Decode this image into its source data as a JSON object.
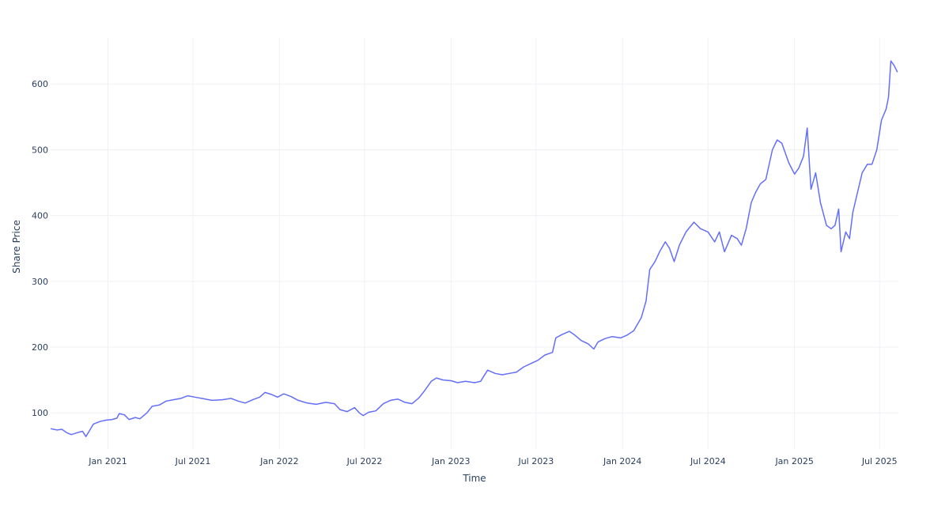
{
  "chart_data": {
    "type": "line",
    "xlabel": "Time",
    "ylabel": "Share Price",
    "x_range": [
      "2020-09-01",
      "2025-08-10"
    ],
    "ylim": [
      45,
      670
    ],
    "grid": true,
    "legend": "none",
    "color": "#636efa",
    "x_ticks": [
      {
        "date": "2021-01-01",
        "label": "Jan 2021"
      },
      {
        "date": "2021-07-01",
        "label": "Jul 2021"
      },
      {
        "date": "2022-01-01",
        "label": "Jan 2022"
      },
      {
        "date": "2022-07-01",
        "label": "Jul 2022"
      },
      {
        "date": "2023-01-01",
        "label": "Jan 2023"
      },
      {
        "date": "2023-07-01",
        "label": "Jul 2023"
      },
      {
        "date": "2024-01-01",
        "label": "Jan 2024"
      },
      {
        "date": "2024-07-01",
        "label": "Jul 2024"
      },
      {
        "date": "2025-01-01",
        "label": "Jan 2025"
      },
      {
        "date": "2025-07-01",
        "label": "Jul 2025"
      }
    ],
    "y_ticks": [
      {
        "value": 100,
        "label": "100"
      },
      {
        "value": 200,
        "label": "200"
      },
      {
        "value": 300,
        "label": "300"
      },
      {
        "value": 400,
        "label": "400"
      },
      {
        "value": 500,
        "label": "500"
      },
      {
        "value": 600,
        "label": "600"
      }
    ],
    "series": [
      {
        "points": [
          [
            "2020-09-01",
            76
          ],
          [
            "2020-09-15",
            74
          ],
          [
            "2020-09-25",
            75
          ],
          [
            "2020-10-05",
            70
          ],
          [
            "2020-10-15",
            67
          ],
          [
            "2020-10-28",
            70
          ],
          [
            "2020-11-08",
            72
          ],
          [
            "2020-11-15",
            64
          ],
          [
            "2020-11-22",
            72
          ],
          [
            "2020-12-01",
            83
          ],
          [
            "2020-12-15",
            87
          ],
          [
            "2020-12-28",
            89
          ],
          [
            "2021-01-10",
            90
          ],
          [
            "2021-01-20",
            92
          ],
          [
            "2021-01-25",
            99
          ],
          [
            "2021-02-05",
            97
          ],
          [
            "2021-02-15",
            90
          ],
          [
            "2021-02-28",
            93
          ],
          [
            "2021-03-10",
            91
          ],
          [
            "2021-03-25",
            100
          ],
          [
            "2021-04-05",
            110
          ],
          [
            "2021-04-20",
            112
          ],
          [
            "2021-05-05",
            118
          ],
          [
            "2021-05-20",
            120
          ],
          [
            "2021-06-05",
            122
          ],
          [
            "2021-06-20",
            126
          ],
          [
            "2021-07-05",
            124
          ],
          [
            "2021-07-20",
            122
          ],
          [
            "2021-08-10",
            119
          ],
          [
            "2021-09-01",
            120
          ],
          [
            "2021-09-20",
            122
          ],
          [
            "2021-10-05",
            118
          ],
          [
            "2021-10-20",
            115
          ],
          [
            "2021-11-05",
            120
          ],
          [
            "2021-11-20",
            124
          ],
          [
            "2021-12-01",
            131
          ],
          [
            "2021-12-15",
            128
          ],
          [
            "2021-12-28",
            124
          ],
          [
            "2022-01-10",
            129
          ],
          [
            "2022-01-25",
            125
          ],
          [
            "2022-02-10",
            119
          ],
          [
            "2022-03-01",
            115
          ],
          [
            "2022-03-20",
            113
          ],
          [
            "2022-04-10",
            116
          ],
          [
            "2022-04-28",
            114
          ],
          [
            "2022-05-10",
            105
          ],
          [
            "2022-05-25",
            102
          ],
          [
            "2022-06-10",
            108
          ],
          [
            "2022-06-20",
            100
          ],
          [
            "2022-06-28",
            96
          ],
          [
            "2022-07-10",
            101
          ],
          [
            "2022-07-25",
            103
          ],
          [
            "2022-08-10",
            114
          ],
          [
            "2022-08-25",
            119
          ],
          [
            "2022-09-10",
            121
          ],
          [
            "2022-09-25",
            116
          ],
          [
            "2022-10-10",
            114
          ],
          [
            "2022-10-25",
            123
          ],
          [
            "2022-11-05",
            133
          ],
          [
            "2022-11-20",
            148
          ],
          [
            "2022-12-01",
            153
          ],
          [
            "2022-12-15",
            150
          ],
          [
            "2023-01-01",
            149
          ],
          [
            "2023-01-15",
            146
          ],
          [
            "2023-02-01",
            148
          ],
          [
            "2023-02-20",
            146
          ],
          [
            "2023-03-05",
            148
          ],
          [
            "2023-03-20",
            165
          ],
          [
            "2023-04-05",
            160
          ],
          [
            "2023-04-20",
            158
          ],
          [
            "2023-05-05",
            160
          ],
          [
            "2023-05-20",
            162
          ],
          [
            "2023-06-05",
            170
          ],
          [
            "2023-06-20",
            175
          ],
          [
            "2023-07-05",
            180
          ],
          [
            "2023-07-20",
            188
          ],
          [
            "2023-08-05",
            192
          ],
          [
            "2023-08-12",
            214
          ],
          [
            "2023-08-25",
            219
          ],
          [
            "2023-09-10",
            224
          ],
          [
            "2023-09-20",
            219
          ],
          [
            "2023-10-05",
            210
          ],
          [
            "2023-10-20",
            205
          ],
          [
            "2023-11-01",
            197
          ],
          [
            "2023-11-10",
            208
          ],
          [
            "2023-11-25",
            213
          ],
          [
            "2023-12-10",
            216
          ],
          [
            "2023-12-28",
            214
          ],
          [
            "2024-01-10",
            218
          ],
          [
            "2024-01-25",
            225
          ],
          [
            "2024-02-10",
            245
          ],
          [
            "2024-02-20",
            270
          ],
          [
            "2024-02-28",
            318
          ],
          [
            "2024-03-10",
            330
          ],
          [
            "2024-03-20",
            345
          ],
          [
            "2024-04-01",
            360
          ],
          [
            "2024-04-10",
            350
          ],
          [
            "2024-04-20",
            330
          ],
          [
            "2024-05-01",
            355
          ],
          [
            "2024-05-15",
            375
          ],
          [
            "2024-06-01",
            390
          ],
          [
            "2024-06-15",
            380
          ],
          [
            "2024-07-01",
            375
          ],
          [
            "2024-07-15",
            360
          ],
          [
            "2024-07-25",
            375
          ],
          [
            "2024-08-05",
            345
          ],
          [
            "2024-08-20",
            370
          ],
          [
            "2024-09-01",
            365
          ],
          [
            "2024-09-10",
            355
          ],
          [
            "2024-09-20",
            380
          ],
          [
            "2024-10-01",
            420
          ],
          [
            "2024-10-10",
            435
          ],
          [
            "2024-10-20",
            448
          ],
          [
            "2024-11-01",
            455
          ],
          [
            "2024-11-15",
            500
          ],
          [
            "2024-11-25",
            515
          ],
          [
            "2024-12-05",
            510
          ],
          [
            "2024-12-20",
            480
          ],
          [
            "2025-01-01",
            463
          ],
          [
            "2025-01-10",
            472
          ],
          [
            "2025-01-20",
            490
          ],
          [
            "2025-01-28",
            533
          ],
          [
            "2025-02-05",
            440
          ],
          [
            "2025-02-15",
            465
          ],
          [
            "2025-02-25",
            420
          ],
          [
            "2025-03-10",
            385
          ],
          [
            "2025-03-20",
            380
          ],
          [
            "2025-03-28",
            385
          ],
          [
            "2025-04-05",
            410
          ],
          [
            "2025-04-10",
            345
          ],
          [
            "2025-04-20",
            375
          ],
          [
            "2025-04-28",
            365
          ],
          [
            "2025-05-05",
            405
          ],
          [
            "2025-05-15",
            435
          ],
          [
            "2025-05-25",
            465
          ],
          [
            "2025-06-05",
            478
          ],
          [
            "2025-06-15",
            478
          ],
          [
            "2025-06-25",
            500
          ],
          [
            "2025-07-05",
            545
          ],
          [
            "2025-07-15",
            562
          ],
          [
            "2025-07-20",
            580
          ],
          [
            "2025-07-25",
            635
          ],
          [
            "2025-08-01",
            628
          ],
          [
            "2025-08-08",
            618
          ]
        ]
      }
    ]
  }
}
